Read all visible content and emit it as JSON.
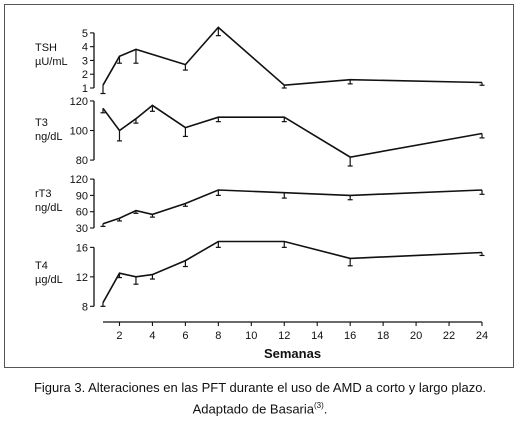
{
  "chart_data": {
    "type": "line",
    "xlabel": "Semanas",
    "x_ticks": [
      2,
      4,
      6,
      8,
      10,
      12,
      14,
      16,
      18,
      20,
      22,
      24
    ],
    "xlim": [
      1,
      24
    ],
    "panels": [
      {
        "label_lines": [
          "TSH",
          "µU/mL"
        ],
        "yticks": [
          1,
          2,
          3,
          4,
          5
        ],
        "ylim": [
          1,
          5.5
        ],
        "x": [
          1,
          2,
          3,
          6,
          8,
          12,
          16,
          24
        ],
        "values": [
          1.2,
          3.3,
          3.8,
          2.7,
          5.4,
          1.2,
          1.6,
          1.4
        ],
        "errors": [
          0.6,
          0.5,
          1.0,
          0.4,
          0.6,
          0.2,
          0.3,
          0.2
        ]
      },
      {
        "label_lines": [
          "T3",
          "ng/dL"
        ],
        "yticks": [
          80,
          100,
          120
        ],
        "ylim": [
          76,
          122
        ],
        "x": [
          1,
          2,
          3,
          4,
          6,
          8,
          12,
          16,
          24
        ],
        "values": [
          115,
          100,
          108,
          117,
          102,
          109,
          109,
          82,
          98
        ],
        "errors": [
          3,
          7,
          3,
          4,
          6,
          3,
          3,
          6,
          3
        ]
      },
      {
        "label_lines": [
          "rT3",
          "ng/dL"
        ],
        "yticks": [
          30,
          60,
          90,
          120
        ],
        "ylim": [
          30,
          122
        ],
        "x": [
          1,
          2,
          3,
          4,
          6,
          8,
          12,
          16,
          24
        ],
        "values": [
          38,
          48,
          62,
          55,
          75,
          100,
          95,
          90,
          100
        ],
        "errors": [
          5,
          5,
          5,
          5,
          5,
          10,
          10,
          8,
          8
        ]
      },
      {
        "label_lines": [
          "T4",
          "µg/dL"
        ],
        "yticks": [
          8,
          12,
          16
        ],
        "ylim": [
          7.5,
          17
        ],
        "x": [
          1,
          2,
          3,
          4,
          6,
          8,
          12,
          16,
          24
        ],
        "values": [
          8.5,
          12.5,
          12.0,
          12.3,
          14.2,
          16.8,
          16.8,
          14.5,
          15.3
        ],
        "errors": [
          0.5,
          0.6,
          1.0,
          0.6,
          0.8,
          0.8,
          0.8,
          1.0,
          0.4
        ]
      }
    ]
  },
  "caption": {
    "text": "Figura 3. Alteraciones en las PFT durante el uso de AMD a corto y largo plazo. Adaptado de Basaria",
    "ref": "(3)",
    "end": "."
  }
}
